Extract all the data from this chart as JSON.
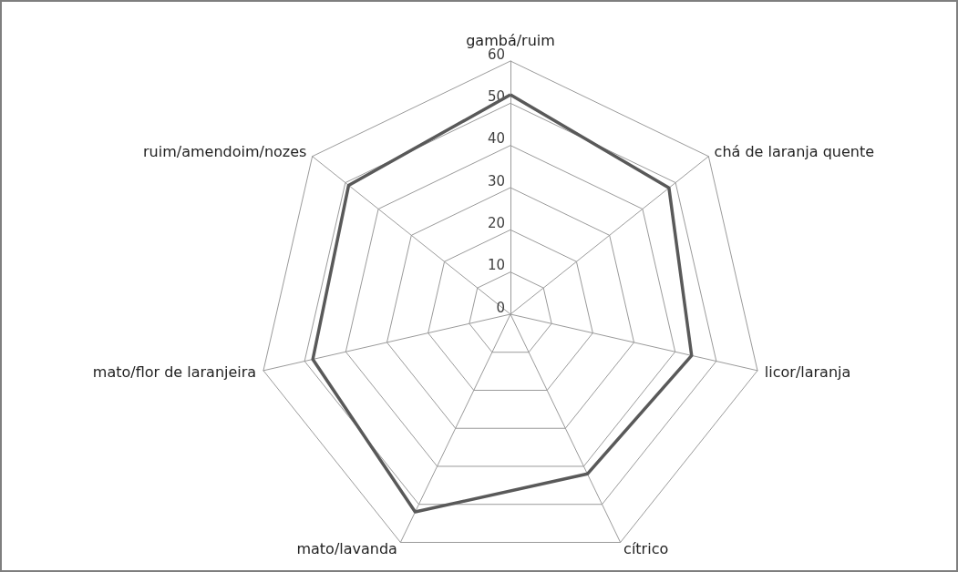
{
  "chart_data": {
    "type": "radar",
    "categories": [
      "gambá/ruim",
      "chá de laranja quente",
      "licor/laranja",
      "cítrico",
      "mato/lavanda",
      "mato/flor de laranjeira",
      "ruim/amendoim/nozes"
    ],
    "series": [
      {
        "color": "#595959",
        "values": [
          52,
          48,
          44,
          42,
          52,
          48,
          49
        ]
      }
    ],
    "ylim": [
      0,
      60
    ],
    "yticks": [
      0,
      10,
      20,
      30,
      40,
      50,
      60
    ],
    "marker": "none",
    "line_style": "solid"
  }
}
